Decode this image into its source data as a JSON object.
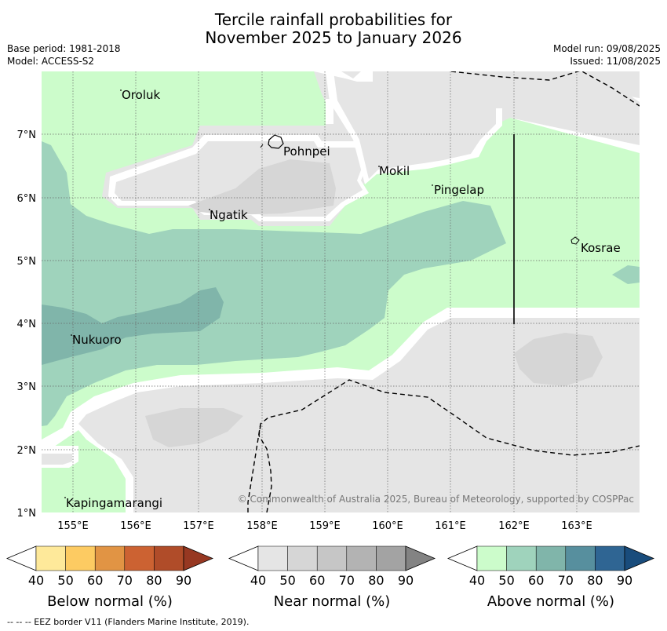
{
  "title": {
    "line1": "Tercile rainfall probabilities for",
    "line2": "November 2025 to January 2026"
  },
  "meta": {
    "base_period": "Base period: 1981-2018",
    "model": "Model: ACCESS-S2",
    "model_run": "Model run: 09/08/2025",
    "issued": "Issued: 11/08/2025"
  },
  "map": {
    "lat_labels": [
      "7°N",
      "6°N",
      "5°N",
      "4°N",
      "3°N",
      "2°N",
      "1°N"
    ],
    "lon_labels": [
      "155°E",
      "156°E",
      "157°E",
      "158°E",
      "159°E",
      "160°E",
      "161°E",
      "162°E",
      "163°E"
    ],
    "places": [
      "Oroluk",
      "Pohnpei",
      "Mokil",
      "Pingelap",
      "Ngatik",
      "Kosrae",
      "Nukuoro",
      "Kapingamarangi"
    ],
    "copyright": "© Commonwealth of Australia 2025, Bureau of Meteorology, supported by COSPPac"
  },
  "legends": [
    {
      "title": "Below normal (%)",
      "ticks": [
        "40",
        "50",
        "60",
        "70",
        "80",
        "90"
      ],
      "colors": [
        "#ffffff",
        "#fee99a",
        "#fdcb62",
        "#e19444",
        "#cc6232",
        "#b04c29",
        "#973822"
      ]
    },
    {
      "title": "Near normal (%)",
      "ticks": [
        "40",
        "50",
        "60",
        "70",
        "80",
        "90"
      ],
      "colors": [
        "#ffffff",
        "#e5e5e5",
        "#d6d6d6",
        "#c6c6c6",
        "#b3b3b3",
        "#a3a3a3",
        "#838383"
      ]
    },
    {
      "title": "Above normal (%)",
      "ticks": [
        "40",
        "50",
        "60",
        "70",
        "80",
        "90"
      ],
      "colors": [
        "#ffffff",
        "#ccfccb",
        "#9fd3bc",
        "#80b5aa",
        "#578f9e",
        "#2f6593",
        "#194c7c"
      ]
    }
  ],
  "footer": "--  --  -- EEZ border V11 (Flanders Marine Institute, 2019)."
}
